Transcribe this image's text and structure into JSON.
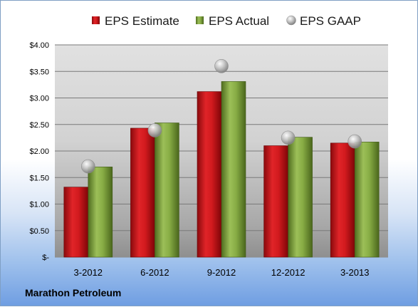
{
  "chart_data": {
    "type": "bar",
    "categories": [
      "3-2012",
      "6-2012",
      "9-2012",
      "12-2012",
      "3-2013"
    ],
    "series": [
      {
        "name": "EPS Estimate",
        "kind": "bar",
        "color": "#c8171b",
        "values": [
          1.32,
          2.43,
          3.12,
          2.1,
          2.15
        ]
      },
      {
        "name": "EPS Actual",
        "kind": "bar",
        "color": "#7da23a",
        "values": [
          1.7,
          2.53,
          3.31,
          2.26,
          2.17
        ]
      },
      {
        "name": "EPS GAAP",
        "kind": "marker",
        "color": "#a9a9a9",
        "values": [
          1.71,
          2.39,
          3.6,
          2.25,
          2.18
        ]
      }
    ],
    "ylim": [
      0,
      4
    ],
    "yticks": [
      {
        "value": 4.0,
        "label": "$4.00"
      },
      {
        "value": 3.5,
        "label": "$3.50"
      },
      {
        "value": 3.0,
        "label": "$3.00"
      },
      {
        "value": 2.5,
        "label": "$2.50"
      },
      {
        "value": 2.0,
        "label": "$2.00"
      },
      {
        "value": 1.5,
        "label": "$1.50"
      },
      {
        "value": 1.0,
        "label": "$1.00"
      },
      {
        "value": 0.5,
        "label": "$0.50"
      },
      {
        "value": 0.0,
        "label": "$-"
      }
    ],
    "grid": true,
    "legend_position": "top"
  },
  "footer": {
    "company": "Marathon Petroleum"
  }
}
